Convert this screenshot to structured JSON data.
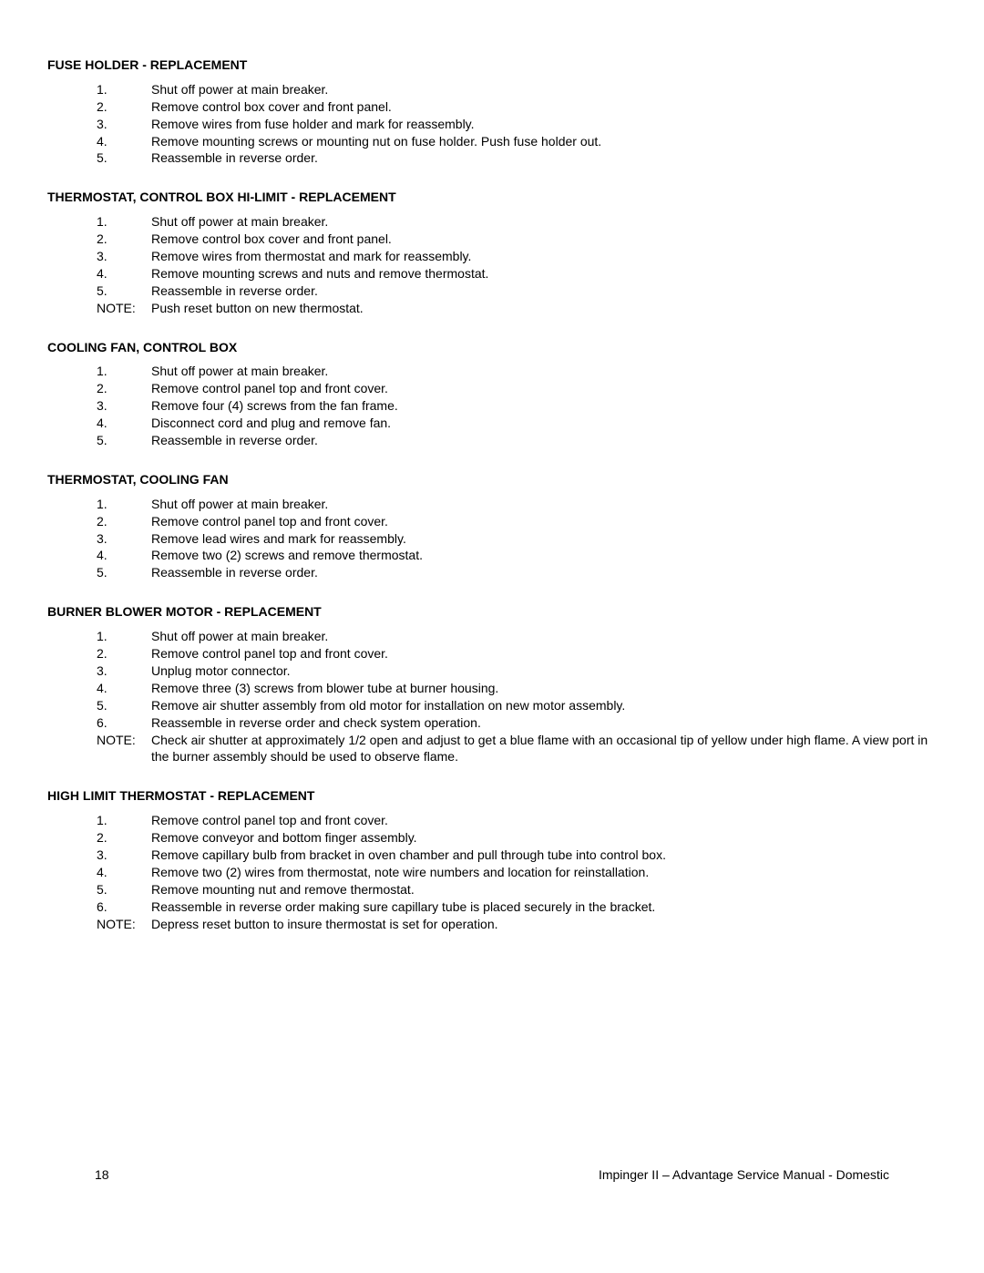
{
  "sections": [
    {
      "heading": "FUSE HOLDER - REPLACEMENT",
      "steps": [
        "Shut off power at main breaker.",
        "Remove control box cover and front panel.",
        "Remove wires from fuse holder and mark for reassembly.",
        "Remove mounting screws or mounting nut on fuse holder.  Push fuse holder out.",
        "Reassemble in reverse order."
      ],
      "note": null
    },
    {
      "heading": "THERMOSTAT, CONTROL BOX HI-LIMIT - REPLACEMENT",
      "steps": [
        "Shut off power at main breaker.",
        "Remove control box cover and front panel.",
        "Remove wires from thermostat and mark for reassembly.",
        "Remove mounting screws and nuts and remove thermostat.",
        "Reassemble in reverse order."
      ],
      "note": "Push reset button on new thermostat."
    },
    {
      "heading": "COOLING FAN, CONTROL BOX",
      "steps": [
        "Shut off power at main breaker.",
        "Remove control panel top and front cover.",
        "Remove four (4) screws from the fan frame.",
        "Disconnect cord and plug and remove fan.",
        "Reassemble in reverse order."
      ],
      "note": null
    },
    {
      "heading": "THERMOSTAT, COOLING FAN",
      "steps": [
        "Shut off power at main breaker.",
        "Remove control panel top and front cover.",
        "Remove lead wires and mark for reassembly.",
        "Remove two (2) screws and remove thermostat.",
        "Reassemble in reverse order."
      ],
      "note": null
    },
    {
      "heading": "BURNER BLOWER MOTOR - REPLACEMENT",
      "steps": [
        "Shut off power at main breaker.",
        "Remove control panel top and front cover.",
        "Unplug motor connector.",
        "Remove three (3) screws from blower tube at burner housing.",
        "Remove air shutter assembly from old motor for installation on new motor assembly.",
        "Reassemble in reverse order and check system operation."
      ],
      "note": "Check air shutter at approximately 1/2 open and adjust to get a blue flame with an occasional tip of yellow under high flame.  A view port in the burner assembly should be used to observe flame."
    },
    {
      "heading": "HIGH LIMIT THERMOSTAT - REPLACEMENT",
      "steps": [
        "Remove control panel top and front cover.",
        "Remove conveyor and bottom finger assembly.",
        "Remove capillary bulb from bracket in oven chamber and pull through tube into control box.",
        "Remove two (2) wires from thermostat, note wire numbers and location for reinstallation.",
        "Remove mounting nut and remove thermostat.",
        "Reassemble in reverse order making sure capillary tube is placed securely in the bracket."
      ],
      "note": "Depress reset button to insure thermostat is set for operation."
    }
  ],
  "noteLabel": "NOTE:",
  "footer": {
    "pageNumber": "18",
    "title": "Impinger II – Advantage Service Manual - Domestic"
  }
}
